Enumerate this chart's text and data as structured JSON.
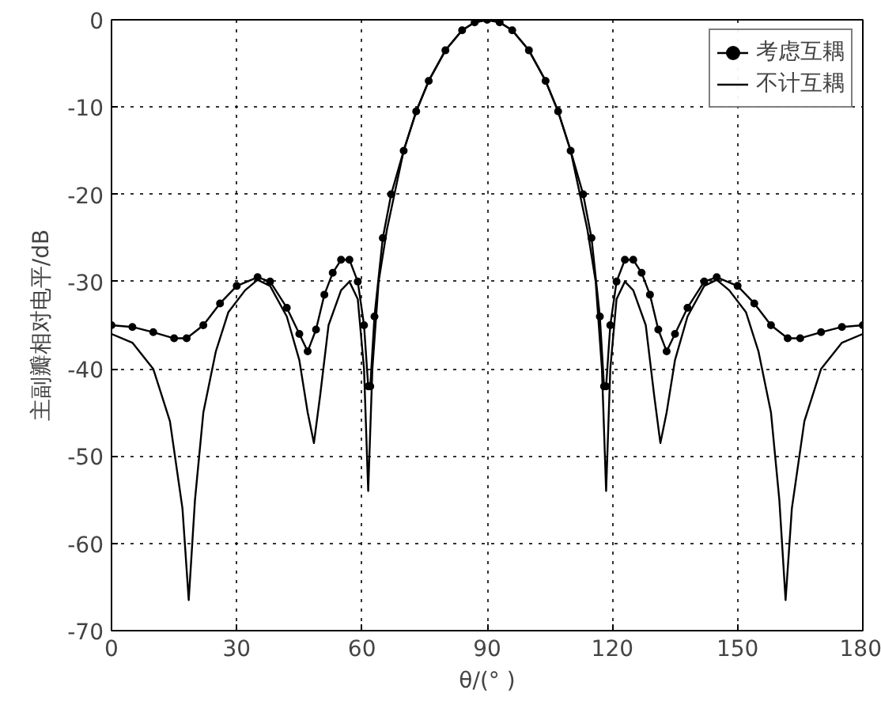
{
  "chart_data": {
    "type": "line",
    "xlabel": "θ/(° )",
    "ylabel": "主副瓣相对电平/dB",
    "xlim": [
      0,
      180
    ],
    "ylim": [
      -70,
      0
    ],
    "xticks": [
      0,
      30,
      60,
      90,
      120,
      150,
      180
    ],
    "yticks": [
      0,
      -10,
      -20,
      -30,
      -40,
      -50,
      -60,
      -70
    ],
    "grid": true,
    "legend": "top right",
    "line_style": "solid",
    "series": [
      {
        "name": "考虑互耦",
        "color": "#000000",
        "marker": "circle",
        "x": [
          0,
          5,
          10,
          15,
          18,
          22,
          26,
          30,
          35,
          38,
          42,
          45,
          47,
          49,
          51,
          53,
          55,
          57,
          59,
          60.5,
          61.5,
          62,
          63,
          65,
          67,
          70,
          73,
          76,
          80,
          84,
          87,
          90,
          93,
          96,
          100,
          104,
          107,
          110,
          113,
          115,
          117,
          118,
          118.5,
          119.5,
          121,
          123,
          125,
          127,
          129,
          131,
          133,
          135,
          138,
          142,
          145,
          150,
          154,
          158,
          162,
          165,
          170,
          175,
          180
        ],
        "values": [
          -35,
          -35.2,
          -35.8,
          -36.5,
          -36.5,
          -35,
          -32.5,
          -30.5,
          -29.5,
          -30,
          -33,
          -36,
          -38,
          -35.5,
          -31.5,
          -29,
          -27.5,
          -27.5,
          -30,
          -35,
          -42,
          -42,
          -34,
          -25,
          -20,
          -15,
          -10.5,
          -7,
          -3.5,
          -1.2,
          -0.3,
          0,
          -0.3,
          -1.2,
          -3.5,
          -7,
          -10.5,
          -15,
          -20,
          -25,
          -34,
          -42,
          -42,
          -35,
          -30,
          -27.5,
          -27.5,
          -29,
          -31.5,
          -35.5,
          -38,
          -36,
          -33,
          -30,
          -29.5,
          -30.5,
          -32.5,
          -35,
          -36.5,
          -36.5,
          -35.8,
          -35.2,
          -35
        ]
      },
      {
        "name": "不计互耦",
        "color": "#000000",
        "marker": "none",
        "x": [
          0,
          5,
          10,
          14,
          17,
          18.5,
          20,
          22,
          25,
          28,
          32,
          35,
          38,
          42,
          45,
          47,
          48.5,
          50,
          52,
          55,
          57,
          59,
          60.5,
          61.5,
          62.5,
          64,
          66,
          70,
          73,
          76,
          80,
          84,
          87,
          90,
          93,
          96,
          100,
          104,
          107,
          110,
          114,
          116,
          117.5,
          118.5,
          119.5,
          121,
          123,
          125,
          128,
          130,
          131.5,
          133,
          135,
          138,
          142,
          145,
          148,
          152,
          155,
          158,
          160,
          161.5,
          163,
          166,
          170,
          175,
          180
        ],
        "values": [
          -36,
          -37,
          -40,
          -46,
          -56,
          -66.5,
          -55,
          -45,
          -38,
          -33.5,
          -31,
          -29.8,
          -30.5,
          -34,
          -39,
          -45,
          -48.5,
          -43,
          -35,
          -31,
          -30,
          -32,
          -40,
          -54,
          -40,
          -30,
          -24,
          -15,
          -10.5,
          -7,
          -3.5,
          -1.2,
          -0.3,
          0,
          -0.3,
          -1.2,
          -3.5,
          -7,
          -10.5,
          -15,
          -24,
          -30,
          -40,
          -54,
          -40,
          -32,
          -30,
          -31,
          -35,
          -43,
          -48.5,
          -45,
          -39,
          -34,
          -30.5,
          -29.8,
          -31,
          -33.5,
          -38,
          -45,
          -55,
          -66.5,
          -56,
          -46,
          -40,
          -37,
          -36
        ]
      }
    ]
  }
}
